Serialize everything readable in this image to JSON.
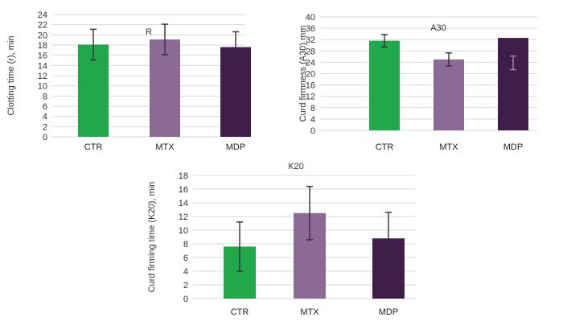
{
  "chart_data": [
    {
      "type": "bar",
      "title": "R",
      "ylabel": "Clotting time (r), min",
      "categories": [
        "CTR",
        "MTX",
        "MDP"
      ],
      "values": [
        18.1,
        19.1,
        17.6
      ],
      "errors": [
        3.0,
        3.0,
        3.0
      ],
      "ylim": [
        0,
        24
      ],
      "yticks": [
        0,
        2,
        4,
        6,
        8,
        10,
        12,
        14,
        16,
        18,
        20,
        22,
        24
      ],
      "grid": true,
      "colors": [
        "#20a84a",
        "#8b6a96",
        "#3f1f4a"
      ]
    },
    {
      "type": "bar",
      "title": "A30",
      "ylabel": "Curd firmness (A30) mm",
      "categories": [
        "CTR",
        "MTX",
        "MDP"
      ],
      "values": [
        31.6,
        25.0,
        32.6
      ],
      "errors": [
        2.2,
        2.3,
        2.4
      ],
      "error_centers": [
        31.6,
        25.0,
        23.8
      ],
      "ylim": [
        0,
        40
      ],
      "yticks": [
        0,
        4,
        8,
        12,
        16,
        20,
        24,
        28,
        32,
        36,
        40
      ],
      "grid": true,
      "colors": [
        "#20a84a",
        "#8b6a96",
        "#3f1f4a"
      ]
    },
    {
      "type": "bar",
      "title": "K20",
      "ylabel": "Curd firming time (K20), min",
      "categories": [
        "CTR",
        "MTX",
        "MDP"
      ],
      "values": [
        7.6,
        12.5,
        8.8
      ],
      "errors": [
        3.6,
        3.9,
        3.8
      ],
      "ylim": [
        0,
        18
      ],
      "yticks": [
        0,
        2,
        4,
        6,
        8,
        10,
        12,
        14,
        16,
        18
      ],
      "grid": true,
      "colors": [
        "#20a84a",
        "#8b6a96",
        "#3f1f4a"
      ]
    }
  ]
}
